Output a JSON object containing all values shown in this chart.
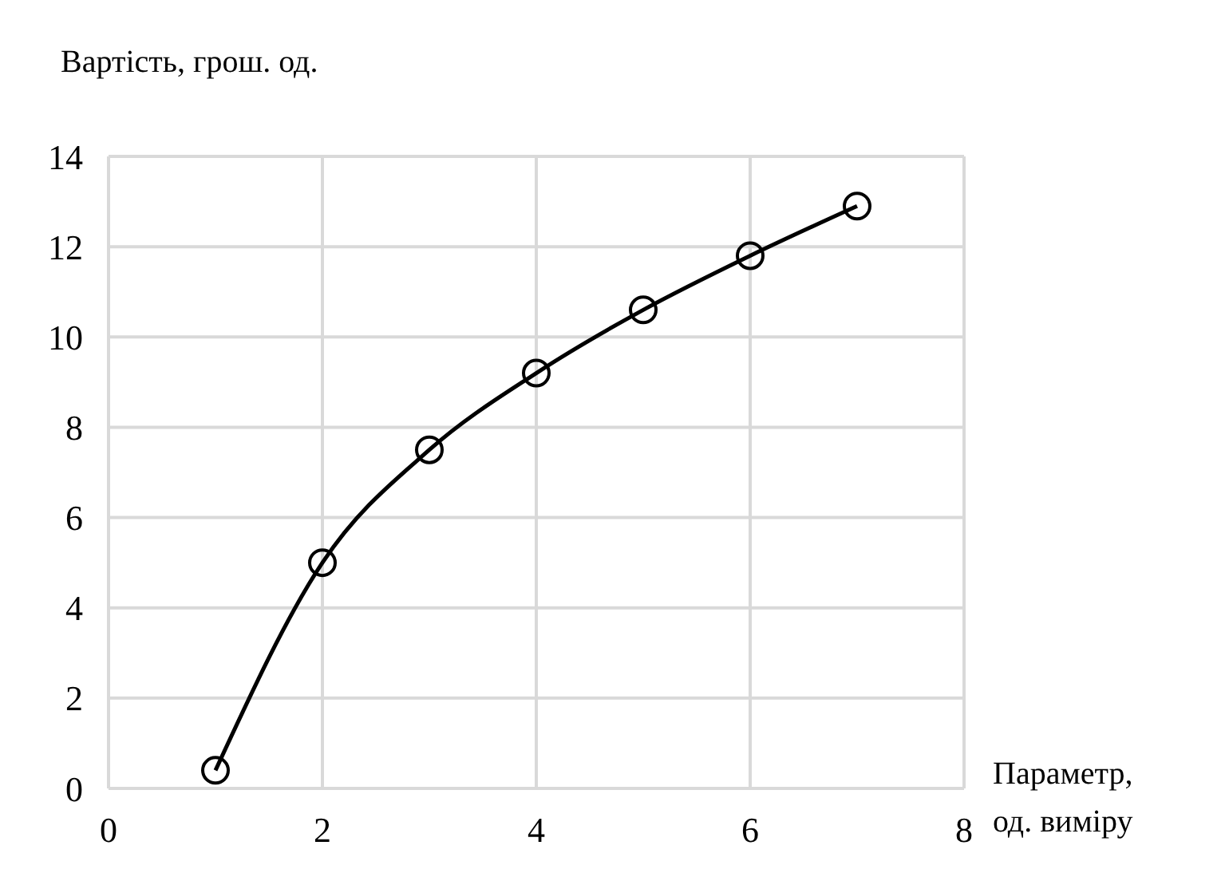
{
  "chart_data": {
    "type": "line",
    "xlabel": "Параметр, од. виміру",
    "ylabel": "Вартість, грош. од.",
    "x": [
      1,
      2,
      3,
      4,
      5,
      6,
      7
    ],
    "series": [
      {
        "color": "#000000",
        "values": [
          0.4,
          5.0,
          7.5,
          9.2,
          10.6,
          11.8,
          12.9
        ]
      }
    ],
    "xlim": [
      0,
      8
    ],
    "xticks": [
      0,
      2,
      4,
      6,
      8
    ],
    "ylim": [
      0,
      14
    ],
    "yticks": [
      0,
      2,
      4,
      6,
      8,
      10,
      12,
      14
    ],
    "grid": true,
    "marker": "circle",
    "line_style": "solid"
  }
}
